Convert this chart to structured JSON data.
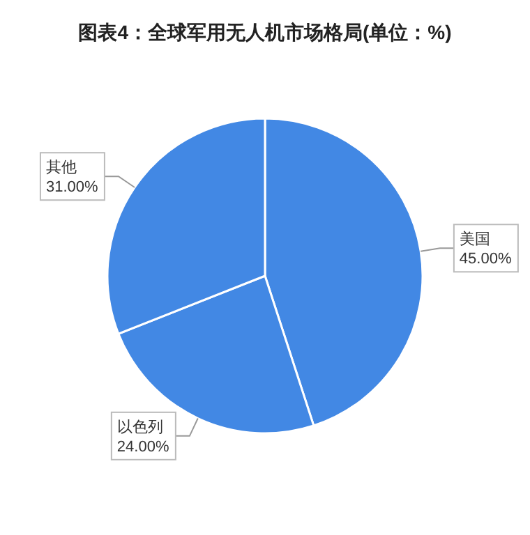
{
  "chart_data": {
    "type": "pie",
    "title": "图表4：全球军用无人机市场格局(单位：%)",
    "categories": [
      "美国",
      "以色列",
      "其他"
    ],
    "values": [
      45,
      24,
      31
    ],
    "colors": [
      "#4288e4",
      "#4288e4",
      "#4288e4"
    ],
    "value_labels": [
      "45.00%",
      "24.00%",
      "31.00%"
    ]
  }
}
